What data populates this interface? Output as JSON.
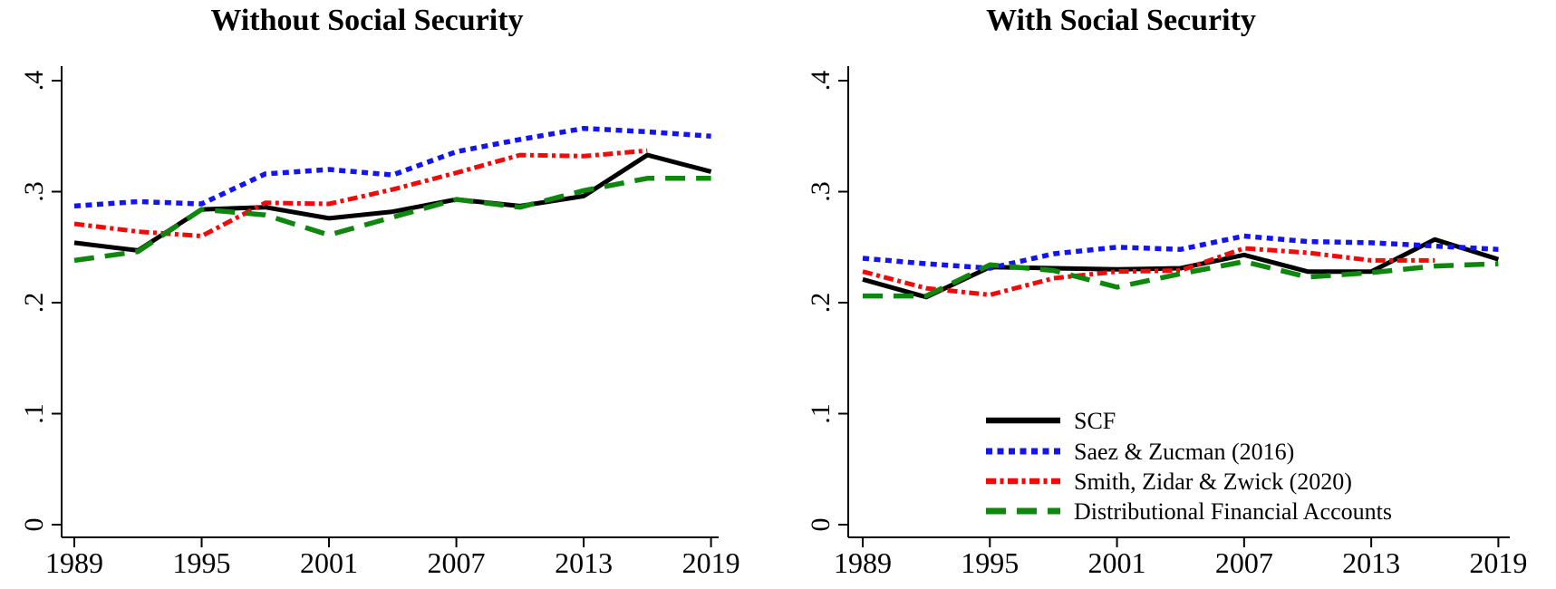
{
  "figure": {
    "background": "#ffffff",
    "axis_color": "#000000"
  },
  "chart_data": [
    {
      "type": "line",
      "title": "Without Social Security",
      "x": [
        1989,
        1992,
        1995,
        1998,
        2001,
        2004,
        2007,
        2010,
        2013,
        2016,
        2019
      ],
      "xticks": [
        1989,
        1995,
        2001,
        2007,
        2013,
        2019
      ],
      "ytick_values": [
        0,
        0.1,
        0.2,
        0.3,
        0.4
      ],
      "ytick_labels": [
        "0",
        ".1",
        ".2",
        ".3",
        ".4"
      ],
      "ylim": [
        0,
        0.413
      ],
      "grid": false,
      "legend": false,
      "series": [
        {
          "name": "SCF",
          "color": "#000000",
          "style": "solid",
          "values": [
            0.254,
            0.247,
            0.284,
            0.286,
            0.276,
            0.282,
            0.293,
            0.287,
            0.296,
            0.333,
            0.318
          ]
        },
        {
          "name": "Saez & Zucman (2016)",
          "color": "#1414f0",
          "style": "dotted",
          "values": [
            0.287,
            0.291,
            0.289,
            0.316,
            0.32,
            0.315,
            0.336,
            0.347,
            0.357,
            0.354,
            0.35
          ]
        },
        {
          "name": "Smith, Zidar & Zwick (2020)",
          "color": "#f00a0a",
          "style": "dashdot",
          "values": [
            0.271,
            0.264,
            0.26,
            0.29,
            0.289,
            0.302,
            0.317,
            0.333,
            0.332,
            0.337,
            null
          ]
        },
        {
          "name": "Distributional Financial Accounts",
          "color": "#0f870f",
          "style": "longdash",
          "values": [
            0.238,
            0.246,
            0.284,
            0.279,
            0.261,
            0.277,
            0.293,
            0.286,
            0.301,
            0.312,
            0.312
          ]
        }
      ]
    },
    {
      "type": "line",
      "title": "With Social Security",
      "x": [
        1989,
        1992,
        1995,
        1998,
        2001,
        2004,
        2007,
        2010,
        2013,
        2016,
        2019
      ],
      "xticks": [
        1989,
        1995,
        2001,
        2007,
        2013,
        2019
      ],
      "ytick_values": [
        0,
        0.1,
        0.2,
        0.3,
        0.4
      ],
      "ytick_labels": [
        "0",
        ".1",
        ".2",
        ".3",
        ".4"
      ],
      "ylim": [
        0,
        0.413
      ],
      "grid": false,
      "legend": true,
      "series": [
        {
          "name": "SCF",
          "color": "#000000",
          "style": "solid",
          "values": [
            0.221,
            0.205,
            0.232,
            0.231,
            0.23,
            0.231,
            0.243,
            0.228,
            0.228,
            0.257,
            0.239
          ]
        },
        {
          "name": "Saez & Zucman (2016)",
          "color": "#1414f0",
          "style": "dotted",
          "values": [
            0.24,
            0.235,
            0.231,
            0.244,
            0.25,
            0.248,
            0.26,
            0.255,
            0.254,
            0.251,
            0.248
          ]
        },
        {
          "name": "Smith, Zidar & Zwick (2020)",
          "color": "#f00a0a",
          "style": "dashdot",
          "values": [
            0.228,
            0.213,
            0.207,
            0.222,
            0.228,
            0.229,
            0.249,
            0.245,
            0.238,
            0.238,
            null
          ]
        },
        {
          "name": "Distributional Financial Accounts",
          "color": "#0f870f",
          "style": "longdash",
          "values": [
            0.206,
            0.206,
            0.234,
            0.229,
            0.214,
            0.226,
            0.237,
            0.223,
            0.227,
            0.233,
            0.235
          ]
        }
      ]
    }
  ]
}
